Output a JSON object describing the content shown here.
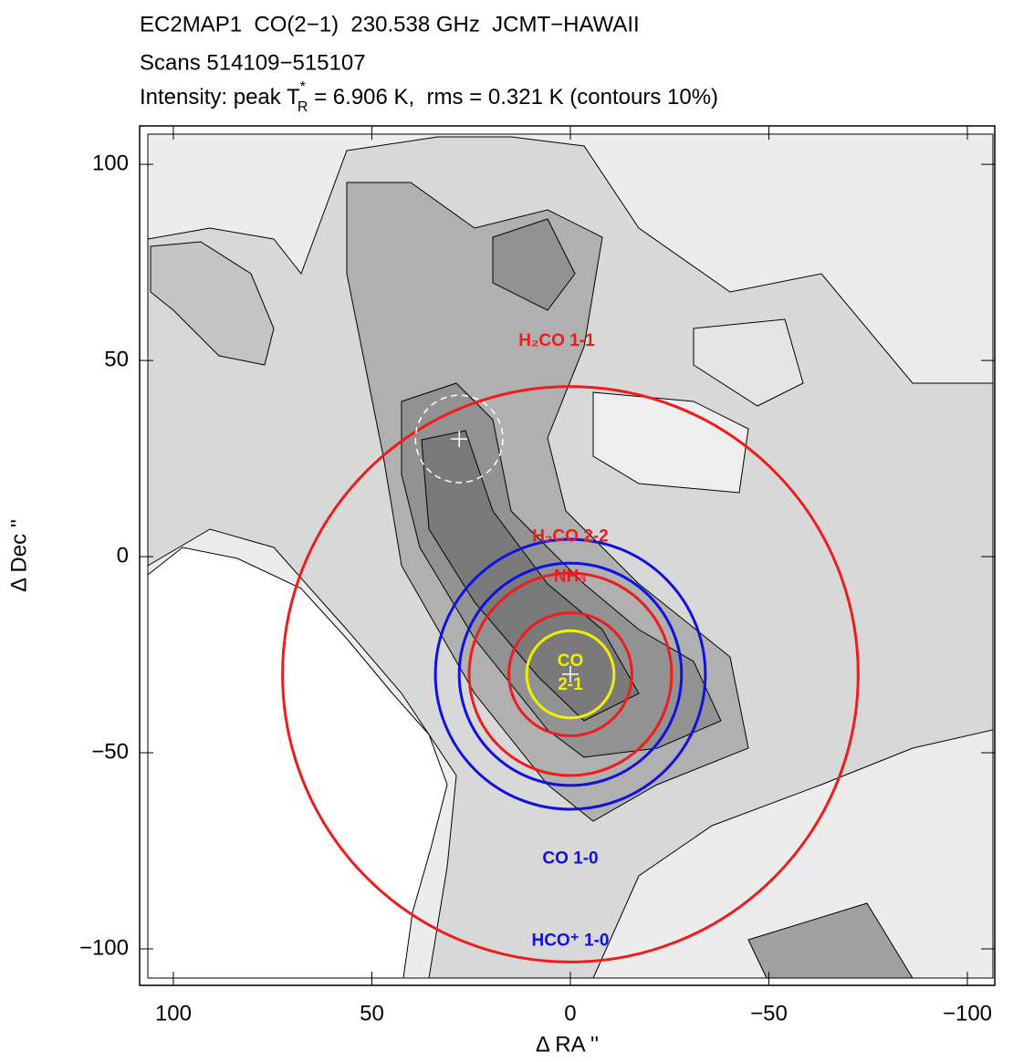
{
  "chart_data": {
    "type": "contour",
    "title_lines": [
      "EC2MAP1  CO(2−1)  230.538 GHz  JCMT−HAWAII",
      "Scans 514109−515107"
    ],
    "intensity": [
      "Intensity: peak T",
      "*",
      "R",
      " = 6.906 K,  rms = 0.321 K (contours 10%)"
    ],
    "x_label": "Δ RA ''",
    "y_label": "Δ Dec ''",
    "xlim": [
      108.5,
      -106.9
    ],
    "ylim": [
      -109.3,
      109.8
    ],
    "xticks": [
      100,
      50,
      0,
      {
        "value": -50,
        "label": "−50"
      },
      {
        "value": -100,
        "label": "−100"
      }
    ],
    "yticks": [
      100,
      50,
      0,
      {
        "value": -50,
        "label": "−50"
      },
      {
        "value": -100,
        "label": "−100"
      }
    ],
    "beams": [
      {
        "label": [
          "H₂CO 1-1"
        ],
        "color": "#ee1c1c",
        "center": [
          0,
          -30
        ],
        "radius": 72.5
      },
      {
        "label": [
          "CO 1-0"
        ],
        "color": "#1010e0",
        "center": [
          0,
          -30
        ],
        "radius": 34
      },
      {
        "label": [
          "HCO⁺ 1-0"
        ],
        "color": "#1010e0",
        "center": [
          0,
          -30
        ],
        "radius": 28
      },
      {
        "label": [
          "H₂CO 2-2"
        ],
        "color": "#ee1c1c",
        "center": [
          0,
          -30
        ],
        "radius": 25.5
      },
      {
        "label": [
          "NH₃"
        ],
        "color": "#ee1c1c",
        "center": [
          0,
          -30
        ],
        "radius": 15.5
      },
      {
        "label": [
          "CO",
          "2-1"
        ],
        "color": "#f0f000",
        "center": [
          0,
          -30
        ],
        "radius": 11
      }
    ],
    "reference": {
      "color": "#ffffff",
      "center": [
        28,
        30
      ],
      "radius": 11
    }
  }
}
